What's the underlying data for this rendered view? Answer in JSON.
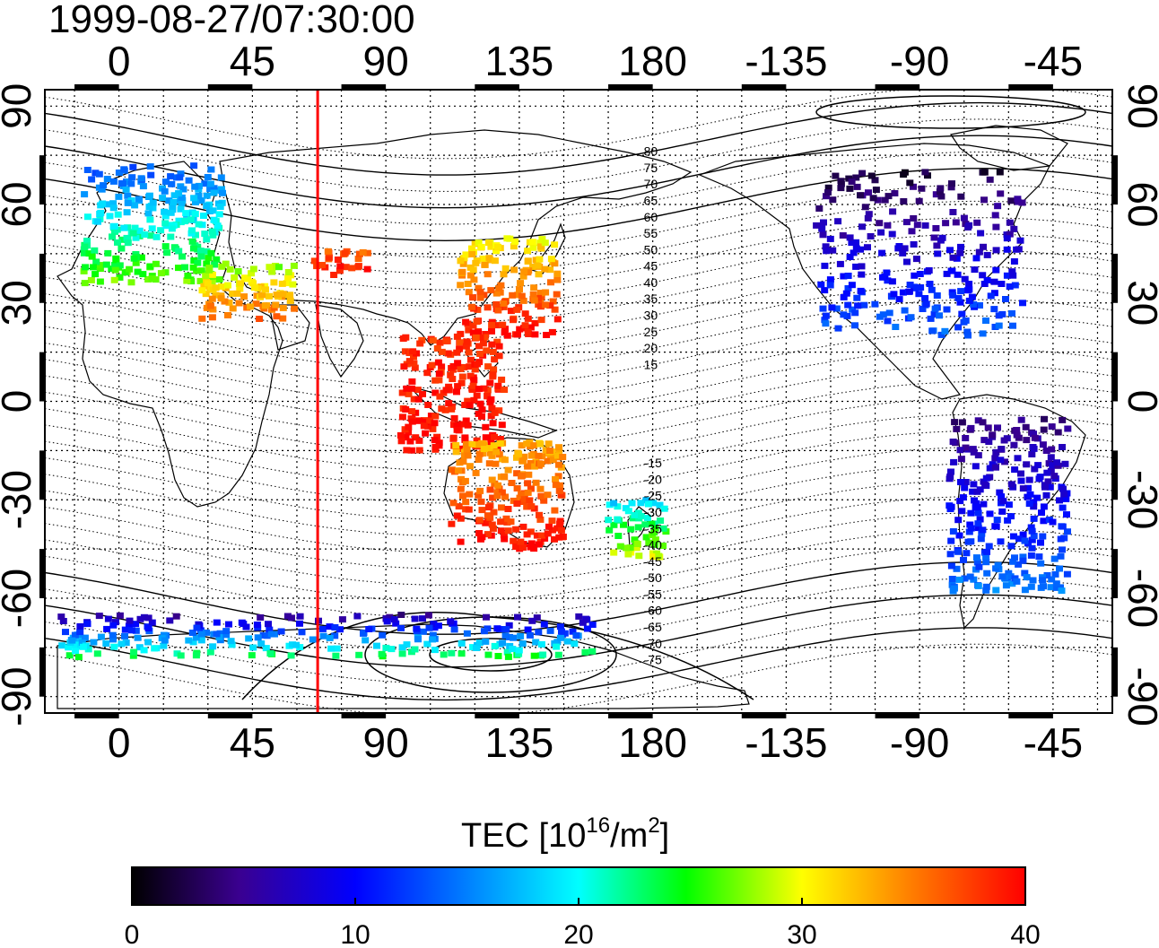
{
  "timestamp": "1999-08-27/07:30:00",
  "map": {
    "top_lon_ticks": [
      "0",
      "45",
      "90",
      "135",
      "180",
      "-135",
      "-90",
      "-45"
    ],
    "bottom_lon_ticks": [
      "0",
      "45",
      "90",
      "135",
      "180",
      "-135",
      "-90",
      "-45"
    ],
    "lat_ticks": [
      "90",
      "60",
      "30",
      "0",
      "-30",
      "-60",
      "-90"
    ],
    "lat_tick_values": [
      90,
      60,
      30,
      0,
      -30,
      -60,
      -90
    ],
    "lon_tick_values": [
      0,
      45,
      90,
      135,
      180,
      225,
      270,
      315
    ],
    "lon_range": [
      -25,
      335
    ],
    "lat_range": [
      -95,
      95
    ],
    "grid": "dotted every 15 degrees",
    "marker_meridian_lon": 67,
    "marker_color": "#ff0000",
    "contour_labels": [
      "80",
      "75",
      "70",
      "65",
      "60",
      "55",
      "50",
      "45",
      "40",
      "35",
      "30",
      "25",
      "20",
      "15",
      "-15",
      "-20",
      "-25",
      "-30",
      "-35",
      "-40",
      "-45",
      "-50",
      "-55",
      "-60",
      "-65",
      "-70",
      "-75"
    ],
    "contour_label_values": [
      80,
      75,
      70,
      65,
      60,
      55,
      50,
      45,
      40,
      35,
      30,
      25,
      20,
      15,
      -15,
      -20,
      -25,
      -30,
      -35,
      -40,
      -45,
      -50,
      -55,
      -60,
      -65,
      -70,
      -75
    ],
    "observations": [
      {
        "region": "Europe",
        "lon": [
          -12,
          35
        ],
        "lat": [
          36,
          72
        ],
        "tec": [
          13,
          27
        ]
      },
      {
        "region": "Middle East",
        "lon": [
          28,
          60
        ],
        "lat": [
          25,
          42
        ],
        "tec": [
          27,
          37
        ]
      },
      {
        "region": "Central Asia",
        "lon": [
          65,
          85
        ],
        "lat": [
          38,
          46
        ],
        "tec": [
          36,
          40
        ]
      },
      {
        "region": "Japan / East China",
        "lon": [
          115,
          148
        ],
        "lat": [
          20,
          50
        ],
        "tec": [
          30,
          40
        ]
      },
      {
        "region": "Southeast Asia",
        "lon": [
          95,
          130
        ],
        "lat": [
          -15,
          20
        ],
        "tec": [
          38,
          40
        ]
      },
      {
        "region": "Australia",
        "lon": [
          112,
          150
        ],
        "lat": [
          -45,
          -12
        ],
        "tec": [
          33,
          40
        ]
      },
      {
        "region": "New Zealand",
        "lon": [
          165,
          185
        ],
        "lat": [
          -48,
          -30
        ],
        "tec": [
          18,
          30
        ]
      },
      {
        "region": "North America",
        "lon": [
          235,
          305
        ],
        "lat": [
          20,
          70
        ],
        "tec": [
          2,
          14
        ]
      },
      {
        "region": "South America",
        "lon": [
          280,
          320
        ],
        "lat": [
          -58,
          -5
        ],
        "tec": [
          4,
          15
        ]
      },
      {
        "region": "Antarctica",
        "lon": [
          -20,
          160
        ],
        "lat": [
          -78,
          -65
        ],
        "tec": [
          5,
          24
        ]
      }
    ]
  },
  "colorbar": {
    "title_prefix": "TEC  [10",
    "title_exp1": "16",
    "title_mid": "/m",
    "title_exp2": "2",
    "title_suffix": "]",
    "ticks": [
      "0",
      "10",
      "20",
      "30",
      "40"
    ],
    "min": 0,
    "max": 40,
    "stops": [
      "#000000",
      "#3a0090",
      "#0000ff",
      "#00ffff",
      "#00ff00",
      "#ffff00",
      "#ff8000",
      "#ff0000"
    ]
  }
}
